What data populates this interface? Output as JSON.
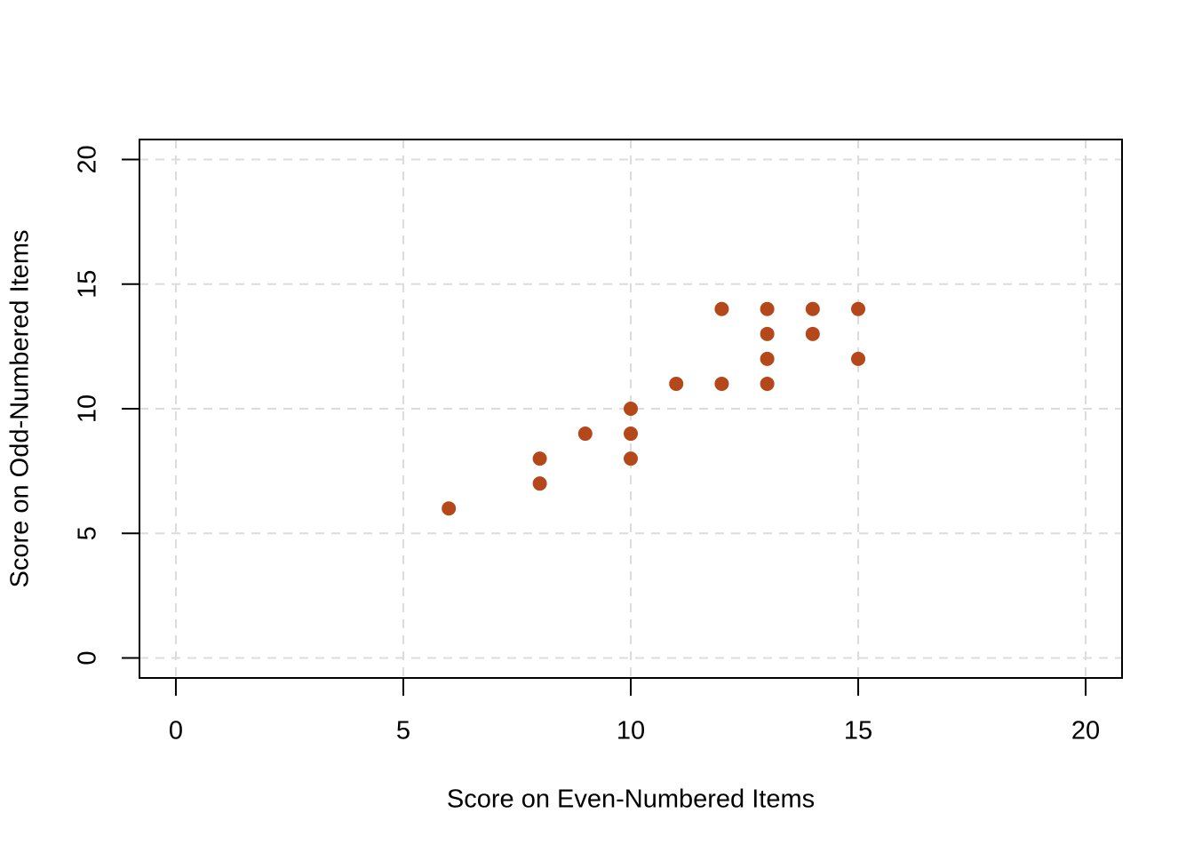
{
  "chart_data": {
    "type": "scatter",
    "x_label": "Score on Even-Numbered Items",
    "y_label": "Score on Odd-Numbered Items",
    "x": [
      6,
      8,
      8,
      9,
      10,
      10,
      10,
      11,
      12,
      12,
      13,
      13,
      13,
      13,
      14,
      14,
      15,
      15
    ],
    "y": [
      6,
      8,
      7,
      9,
      10,
      9,
      8,
      11,
      14,
      11,
      14,
      13,
      12,
      11,
      14,
      13,
      14,
      12
    ],
    "color": "#b5481a",
    "xlim": [
      -0.8,
      20.8
    ],
    "ylim": [
      -0.8,
      20.8
    ],
    "xticks": [
      0,
      5,
      10,
      15,
      20
    ],
    "yticks": [
      0,
      5,
      10,
      15,
      20
    ],
    "grid": true
  }
}
